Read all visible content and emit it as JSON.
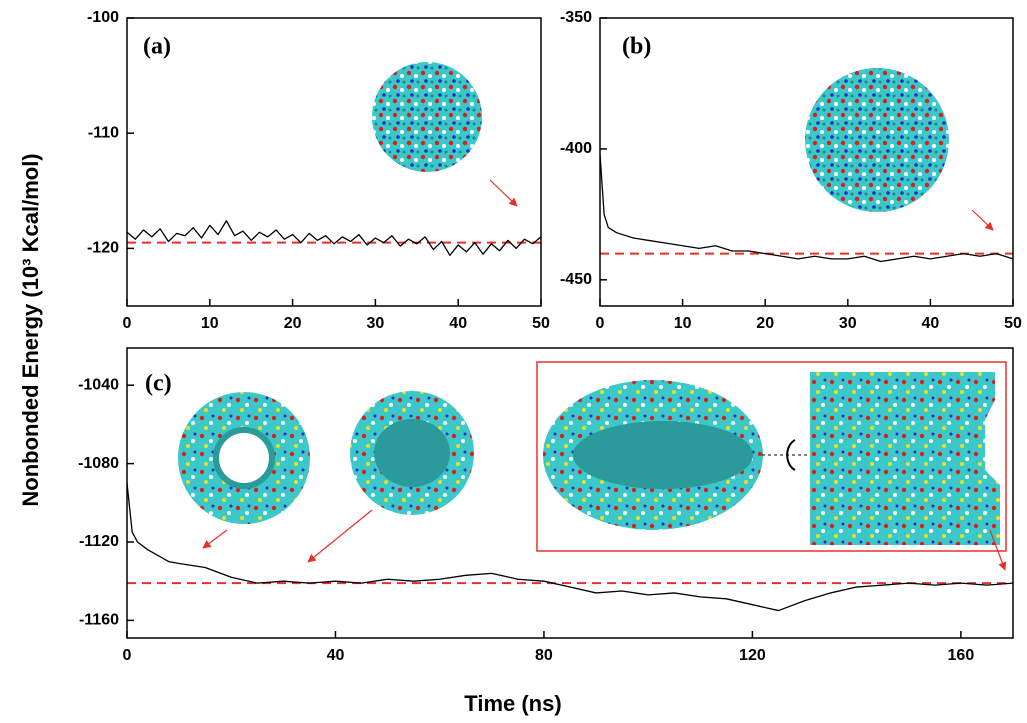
{
  "ylabel": "Nonbonded Energy (10³ Kcal/mol)",
  "xlabel": "Time (ns)",
  "chart_data": [
    {
      "type": "line",
      "label": "(a)",
      "x": [
        0,
        1,
        2,
        3,
        4,
        5,
        6,
        7,
        8,
        9,
        10,
        11,
        12,
        13,
        14,
        15,
        16,
        17,
        18,
        19,
        20,
        21,
        22,
        23,
        24,
        25,
        26,
        27,
        28,
        29,
        30,
        31,
        32,
        33,
        34,
        35,
        36,
        37,
        38,
        39,
        40,
        41,
        42,
        43,
        44,
        45,
        46,
        47,
        48,
        49,
        50
      ],
      "series": [
        {
          "color": "#000000",
          "values": [
            -118.6,
            -119.2,
            -118.4,
            -119.0,
            -118.3,
            -119.4,
            -118.7,
            -118.9,
            -118.2,
            -119.1,
            -118.0,
            -118.8,
            -117.6,
            -118.9,
            -118.5,
            -119.3,
            -118.6,
            -119.0,
            -118.4,
            -119.2,
            -118.8,
            -119.5,
            -118.7,
            -119.3,
            -118.9,
            -119.6,
            -119.0,
            -119.4,
            -118.8,
            -119.7,
            -119.1,
            -119.5,
            -118.9,
            -119.8,
            -119.2,
            -119.6,
            -119.0,
            -120.1,
            -119.4,
            -120.6,
            -119.7,
            -120.3,
            -119.5,
            -120.5,
            -119.6,
            -120.2,
            -119.3,
            -120.0,
            -119.2,
            -119.6,
            -119.0
          ]
        }
      ],
      "reference_line": {
        "value": -119.5,
        "color": "#e8302a",
        "dashed": true
      },
      "xlim": [
        0,
        50
      ],
      "xticks": [
        0,
        10,
        20,
        30,
        40,
        50
      ],
      "ylim": [
        -125,
        -100
      ],
      "yticks": [
        -100,
        -110,
        -120
      ]
    },
    {
      "type": "line",
      "label": "(b)",
      "x": [
        0,
        0.5,
        1,
        2,
        3,
        4,
        6,
        8,
        10,
        12,
        14,
        16,
        18,
        20,
        22,
        24,
        26,
        28,
        30,
        32,
        34,
        36,
        38,
        40,
        42,
        44,
        46,
        48,
        50
      ],
      "series": [
        {
          "color": "#000000",
          "values": [
            -402,
            -425,
            -430,
            -432,
            -433,
            -434,
            -435,
            -436,
            -437,
            -438,
            -437,
            -439,
            -439,
            -440,
            -441,
            -442,
            -441,
            -442,
            -442,
            -441,
            -443,
            -442,
            -441,
            -442,
            -441,
            -440,
            -441,
            -440,
            -442
          ]
        }
      ],
      "reference_line": {
        "value": -440,
        "color": "#e8302a",
        "dashed": true
      },
      "xlim": [
        0,
        50
      ],
      "xticks": [
        0,
        10,
        20,
        30,
        40,
        50
      ],
      "ylim": [
        -460,
        -350
      ],
      "yticks": [
        -350,
        -400,
        -450
      ]
    },
    {
      "type": "line",
      "label": "(c)",
      "x": [
        0,
        1,
        2,
        4,
        6,
        8,
        10,
        15,
        20,
        25,
        30,
        35,
        40,
        45,
        50,
        55,
        60,
        65,
        70,
        75,
        80,
        85,
        90,
        95,
        100,
        105,
        110,
        115,
        120,
        125,
        130,
        135,
        140,
        145,
        150,
        155,
        160,
        165,
        170
      ],
      "series": [
        {
          "color": "#000000",
          "values": [
            -1090,
            -1115,
            -1120,
            -1124,
            -1127,
            -1130,
            -1131,
            -1133,
            -1138,
            -1141,
            -1140,
            -1141,
            -1140,
            -1141,
            -1139,
            -1140,
            -1139,
            -1137,
            -1136,
            -1139,
            -1140,
            -1143,
            -1146,
            -1145,
            -1147,
            -1146,
            -1148,
            -1149,
            -1152,
            -1155,
            -1150,
            -1146,
            -1143,
            -1142,
            -1141,
            -1142,
            -1141,
            -1142,
            -1141
          ]
        }
      ],
      "reference_line": {
        "value": -1141,
        "color": "#e8302a",
        "dashed": true
      },
      "xlim": [
        0,
        170
      ],
      "xticks": [
        0,
        40,
        80,
        120,
        160
      ],
      "ylim": [
        -1169,
        -1021
      ],
      "yticks": [
        -1040,
        -1080,
        -1120,
        -1160
      ]
    }
  ]
}
